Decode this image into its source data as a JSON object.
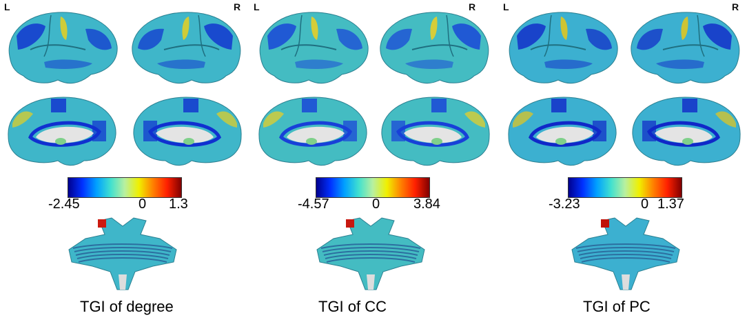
{
  "panels": [
    {
      "caption": "TGI of degree",
      "left_label": "L",
      "right_label": "R",
      "colorbar": {
        "min": "-2.45",
        "zero": "0",
        "max": "1.3"
      },
      "palette": {
        "base": "#3fb6c9",
        "deep": "#1030d0",
        "warm": "#e8d020",
        "hot": "#cc1a10"
      }
    },
    {
      "caption": "TGI of CC",
      "left_label": "L",
      "right_label": "R",
      "colorbar": {
        "min": "-4.57",
        "zero": "0",
        "max": "3.84"
      },
      "palette": {
        "base": "#44bcc2",
        "deep": "#1840d8",
        "warm": "#f0d020",
        "hot": "#c81810"
      }
    },
    {
      "caption": "TGI of PC",
      "left_label": "L",
      "right_label": "R",
      "colorbar": {
        "min": "-3.23",
        "zero": "0",
        "max": "1.37"
      },
      "palette": {
        "base": "#3cb0d0",
        "deep": "#1028c8",
        "warm": "#e8c818",
        "hot": "#c01208"
      }
    }
  ],
  "colorbar_gradient": [
    "#00008f",
    "#0030ff",
    "#00a0ff",
    "#40e0d0",
    "#b8f0a0",
    "#f0f000",
    "#ff8000",
    "#ff2000",
    "#800000"
  ]
}
